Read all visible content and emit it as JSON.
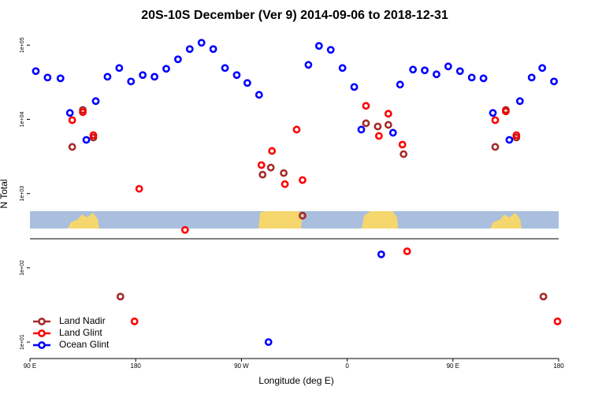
{
  "chart_data": {
    "type": "scatter",
    "title": "20S-10S December (Ver 9)   2014-09-06 to 2018-12-31",
    "x_label": "Longitude (deg E)",
    "y_label": "N Total",
    "log_y": true,
    "legend": "bottom-left",
    "xlim": [
      90,
      540
    ],
    "xticks": [
      {
        "value": 90,
        "label": "90 E"
      },
      {
        "value": 180,
        "label": "180"
      },
      {
        "value": 270,
        "label": "90 W"
      },
      {
        "value": 360,
        "label": "0"
      },
      {
        "value": 450,
        "label": "90 E"
      },
      {
        "value": 540,
        "label": "180"
      }
    ],
    "ylim": [
      6,
      160000
    ],
    "yticks": [
      {
        "value": 10,
        "label": "1e+01"
      },
      {
        "value": 100,
        "label": "1e+02"
      },
      {
        "value": 1000,
        "label": "1e+03"
      },
      {
        "value": 10000,
        "label": "1e+04"
      },
      {
        "value": 100000,
        "label": "1e+05"
      }
    ],
    "series": [
      {
        "name": "Land Nadir",
        "color": "#a52a2a",
        "x": [
          126,
          135,
          144,
          167,
          288,
          295,
          306,
          322,
          376,
          386,
          395,
          408,
          486,
          495,
          504,
          527
        ],
        "values": [
          4250,
          13400,
          5690,
          41,
          1800,
          2240,
          1890,
          504,
          8850,
          8020,
          8430,
          3400,
          4250,
          13400,
          5690,
          41
        ]
      },
      {
        "name": "Land Glint",
        "color": "#ff0000",
        "x": [
          126,
          135,
          144,
          183,
          222,
          287,
          296,
          307,
          317,
          322,
          376,
          387,
          395,
          407,
          411,
          179,
          486,
          495,
          504,
          539
        ],
        "values": [
          9750,
          12500,
          6120,
          1160,
          324,
          2420,
          3750,
          1340,
          7280,
          1520,
          15200,
          5980,
          11900,
          4570,
          167,
          19,
          9750,
          12800,
          6120,
          19
        ]
      },
      {
        "name": "Ocean Glint",
        "color": "#0000ff",
        "x": [
          95,
          105,
          116,
          124,
          138,
          146,
          156,
          166,
          176,
          186,
          196,
          206,
          216,
          226,
          236,
          246,
          256,
          266,
          275,
          285,
          293,
          327,
          336,
          346,
          356,
          366,
          372,
          389,
          399,
          405,
          416,
          426,
          436,
          446,
          456,
          466,
          476,
          484,
          498,
          507,
          517,
          526,
          536
        ],
        "values": [
          44600,
          36600,
          35700,
          12200,
          5290,
          17600,
          37500,
          49100,
          32400,
          39500,
          37500,
          48000,
          64400,
          88400,
          107600,
          88400,
          49100,
          39500,
          30900,
          21400,
          10,
          54200,
          97500,
          86300,
          49100,
          27300,
          7280,
          152,
          6600,
          29400,
          46800,
          45700,
          40400,
          51600,
          44600,
          36600,
          35700,
          12200,
          5290,
          17600,
          36600,
          49100,
          32400
        ]
      }
    ]
  }
}
